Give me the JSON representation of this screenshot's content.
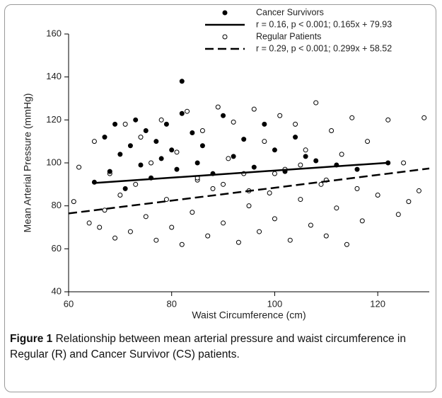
{
  "chart_data": {
    "type": "scatter",
    "xlabel": "Waist Circumference (cm)",
    "ylabel": "Mean Arterial Pressure (mmHg)",
    "xlim": [
      60,
      130
    ],
    "xticks": [
      60,
      80,
      100,
      120
    ],
    "ylim": [
      40,
      160
    ],
    "yticks": [
      40,
      60,
      80,
      100,
      120,
      140,
      160
    ],
    "legend": "top",
    "series": [
      {
        "name": "Cancer Survivors",
        "kind": "points",
        "color": "#000000",
        "filled": true,
        "x": [
          65,
          67,
          68,
          69,
          70,
          71,
          72,
          73,
          74,
          75,
          76,
          77,
          78,
          79,
          80,
          81,
          82,
          82,
          84,
          85,
          86,
          88,
          90,
          92,
          94,
          96,
          98,
          100,
          102,
          104,
          106,
          108,
          112,
          116,
          122
        ],
        "values": [
          91,
          112,
          96,
          118,
          104,
          88,
          108,
          120,
          99,
          115,
          93,
          110,
          102,
          118,
          106,
          97,
          138,
          123,
          114,
          100,
          108,
          95,
          122,
          103,
          111,
          98,
          118,
          106,
          96,
          112,
          103,
          101,
          99,
          97,
          100
        ]
      },
      {
        "name": "r = 0.16, p < 0.001; 0.165x + 79.93",
        "kind": "line",
        "color": "#000000",
        "dashed": false,
        "x": [
          65,
          122
        ],
        "values": [
          90.65,
          100.06
        ]
      },
      {
        "name": "Regular Patients",
        "kind": "points",
        "color": "#000000",
        "filled": false,
        "x": [
          61,
          62,
          64,
          65,
          66,
          67,
          68,
          69,
          70,
          71,
          72,
          73,
          74,
          75,
          76,
          77,
          78,
          79,
          80,
          81,
          82,
          83,
          84,
          85,
          86,
          87,
          88,
          89,
          90,
          91,
          92,
          93,
          94,
          95,
          96,
          97,
          98,
          99,
          100,
          101,
          102,
          103,
          104,
          105,
          106,
          107,
          108,
          109,
          110,
          111,
          112,
          113,
          114,
          115,
          116,
          117,
          118,
          120,
          122,
          124,
          125,
          126,
          128,
          129,
          85,
          95,
          105,
          90,
          100,
          110
        ],
        "values": [
          82,
          98,
          72,
          110,
          70,
          78,
          95,
          65,
          85,
          118,
          68,
          90,
          112,
          75,
          100,
          64,
          120,
          83,
          70,
          105,
          62,
          124,
          77,
          92,
          115,
          66,
          88,
          126,
          72,
          102,
          119,
          63,
          95,
          80,
          125,
          68,
          110,
          86,
          74,
          122,
          97,
          64,
          118,
          83,
          106,
          71,
          128,
          90,
          66,
          115,
          79,
          104,
          62,
          121,
          88,
          73,
          110,
          85,
          120,
          76,
          100,
          82,
          87,
          121,
          93,
          87,
          99,
          90,
          95,
          92
        ]
      },
      {
        "name": "r = 0.29, p < 0.001; 0.299x + 58.52",
        "kind": "line",
        "color": "#000000",
        "dashed": true,
        "x": [
          60,
          130
        ],
        "values": [
          76.46,
          97.39
        ]
      }
    ]
  },
  "caption": {
    "label": "Figure 1",
    "text": "Relationship between mean arterial pressure and waist circumference in Regular (R) and Cancer Survivor (CS) patients."
  }
}
